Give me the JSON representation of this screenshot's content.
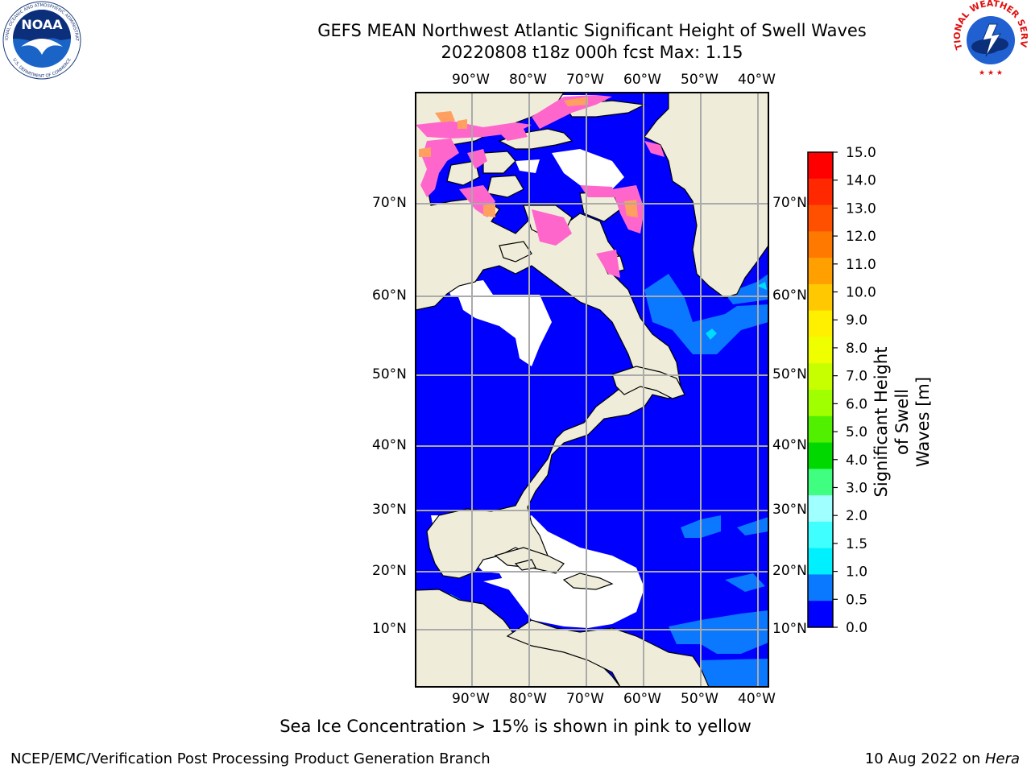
{
  "title": {
    "line1": "GEFS MEAN Northwest Atlantic Significant Height of Swell Waves",
    "line2": "20220808 t18z 000h fcst   Max: 1.15"
  },
  "map": {
    "lon_labels": [
      "90°W",
      "80°W",
      "70°W",
      "60°W",
      "50°W",
      "40°W"
    ],
    "lat_labels": [
      "70°N",
      "60°N",
      "50°N",
      "40°N",
      "30°N",
      "20°N",
      "10°N"
    ],
    "colors": {
      "land": "#efedda",
      "ocean_low": "#0000ff",
      "ocean_mid": "#0a78ff",
      "ocean_high": "#00dcff",
      "no_data": "#ffffff",
      "ice_pink": "#ff66cc",
      "ice_orange": "#ffa060",
      "grid": "#aaaaaa"
    }
  },
  "colorbar": {
    "title_line1": "Significant Height of Swell",
    "title_line2": "Waves [m]",
    "ticks": [
      "15.0",
      "14.0",
      "13.0",
      "12.0",
      "11.0",
      "10.0",
      "9.0",
      "8.0",
      "7.0",
      "6.0",
      "5.0",
      "4.0",
      "3.0",
      "2.0",
      "1.5",
      "1.0",
      "0.5",
      "0.0"
    ],
    "bands": [
      "#ff0000",
      "#ff2800",
      "#ff5000",
      "#ff7800",
      "#ffa000",
      "#ffc800",
      "#fff000",
      "#f0ff00",
      "#c8ff00",
      "#a0ff00",
      "#50f000",
      "#00d800",
      "#40ff80",
      "#a0ffff",
      "#40ffff",
      "#00f0ff",
      "#0a78ff",
      "#0000ff"
    ]
  },
  "caption": "Sea Ice Concentration > 15% is shown in pink to yellow",
  "footer": {
    "left": "NCEP/EMC/Verification Post Processing Product Generation Branch",
    "right_date": "10 Aug 2022 on ",
    "right_machine": "Hera"
  },
  "logos": {
    "noaa_text": "NOAA",
    "noaa_ring_top": "NATIONAL OCEANIC AND ATMOSPHERIC ADMINISTRATION",
    "noaa_ring_bottom": "U.S. DEPARTMENT OF COMMERCE",
    "nws_ring": "NATIONAL WEATHER SERVICE"
  }
}
